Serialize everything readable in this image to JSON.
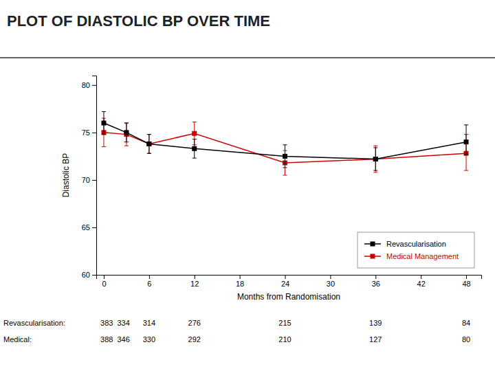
{
  "chart_data": {
    "type": "line",
    "title": "PLOT OF DIASTOLIC BP OVER TIME",
    "xlabel": "Months from Randomisation",
    "ylabel": "Diastolic BP",
    "x": [
      0,
      3,
      6,
      12,
      24,
      36,
      48
    ],
    "series": [
      {
        "name": "Revascularisation",
        "color": "#000000",
        "marker": "square",
        "line_style": "solid",
        "values": [
          76.0,
          75.0,
          73.8,
          73.3,
          72.5,
          72.2,
          74.0
        ],
        "error_low": [
          1.2,
          1.0,
          1.0,
          1.0,
          1.2,
          1.2,
          1.3
        ],
        "error_high": [
          1.2,
          1.0,
          1.0,
          1.0,
          1.2,
          1.2,
          1.8
        ]
      },
      {
        "name": "Medical Management",
        "color": "#cc0000",
        "marker": "square",
        "line_style": "solid",
        "values": [
          75.0,
          74.8,
          73.8,
          74.9,
          71.8,
          72.2,
          72.8
        ],
        "error_low": [
          1.5,
          1.2,
          1.0,
          1.2,
          1.3,
          1.4,
          1.8
        ],
        "error_high": [
          1.5,
          1.2,
          1.0,
          1.2,
          1.3,
          1.4,
          2.0
        ]
      }
    ],
    "xlim": [
      -1,
      50
    ],
    "ylim": [
      60,
      81
    ],
    "xticks": [
      0,
      6,
      12,
      18,
      24,
      30,
      36,
      42,
      48
    ],
    "yticks": [
      60,
      65,
      70,
      75,
      80
    ],
    "grid": false,
    "legend": "lower right",
    "at_risk": [
      {
        "name": "Revascularisation:",
        "labels": [
          "383  334",
          "314",
          "276",
          "215",
          "139",
          "84"
        ]
      },
      {
        "name": "Medical:",
        "labels": [
          "388  346",
          "330",
          "292",
          "210",
          "127",
          "80"
        ]
      }
    ]
  }
}
